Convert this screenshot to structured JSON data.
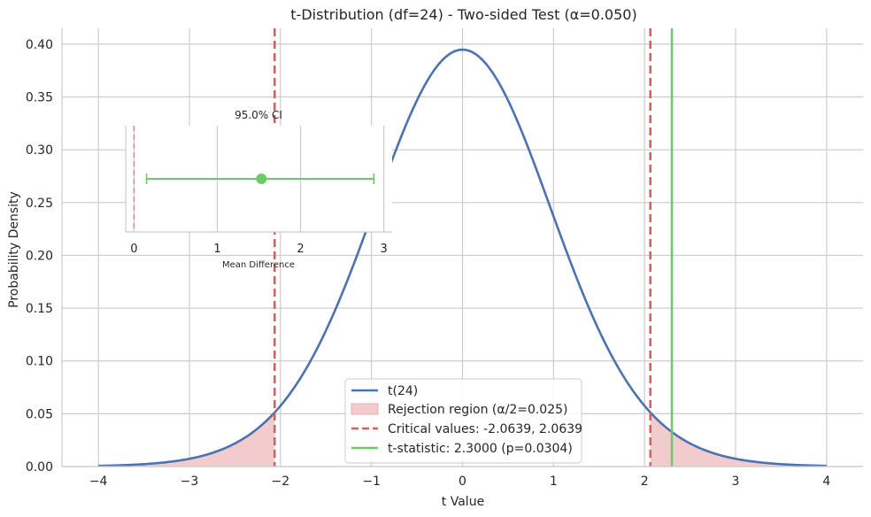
{
  "chart_data": [
    {
      "type": "line",
      "title": "t-Distribution (df=24) - Two-sided Test (α=0.050)",
      "xlabel": "t Value",
      "ylabel": "Probability Density",
      "xlim": [
        -4.4,
        4.4
      ],
      "ylim": [
        0,
        0.415
      ],
      "x_ticks": [
        -4,
        -3,
        -2,
        -1,
        0,
        1,
        2,
        3,
        4
      ],
      "x_tick_labels": [
        "−4",
        "−3",
        "−2",
        "−1",
        "0",
        "1",
        "2",
        "3",
        "4"
      ],
      "y_ticks": [
        0.0,
        0.05,
        0.1,
        0.15,
        0.2,
        0.25,
        0.3,
        0.35,
        0.4
      ],
      "y_tick_labels": [
        "0.00",
        "0.05",
        "0.10",
        "0.15",
        "0.20",
        "0.25",
        "0.30",
        "0.35",
        "0.40"
      ],
      "grid": true,
      "legend_position": "bottom-center",
      "df": 24,
      "x_range": [
        -4,
        4
      ],
      "critical_values": [
        -2.0639,
        2.0639
      ],
      "t_statistic": 2.3,
      "series": [
        {
          "name": "t(24)",
          "kind": "pdf-curve",
          "color": "#4c72b0"
        },
        {
          "name": "Rejection region (α/2=0.025)",
          "kind": "shaded-tails",
          "color": "#f2cccc"
        },
        {
          "name": "Critical values: -2.0639, 2.0639",
          "kind": "dashed-vline",
          "color": "#d65f5f"
        },
        {
          "name": "t-statistic: 2.3000 (p=0.0304)",
          "kind": "solid-vline",
          "color": "#6acc64"
        }
      ]
    },
    {
      "type": "scatter",
      "title": "95.0% CI",
      "xlabel": "Mean Difference",
      "ylabel": "",
      "xlim": [
        -0.1,
        3.1
      ],
      "x_ticks": [
        0,
        1,
        2,
        3
      ],
      "x_tick_labels": [
        "0",
        "1",
        "2",
        "3"
      ],
      "grid": true,
      "point": 1.53,
      "ci_low": 0.15,
      "ci_high": 2.88,
      "reference_line": 0,
      "point_color": "#6acc64",
      "reference_color": "#d65f5f"
    }
  ]
}
